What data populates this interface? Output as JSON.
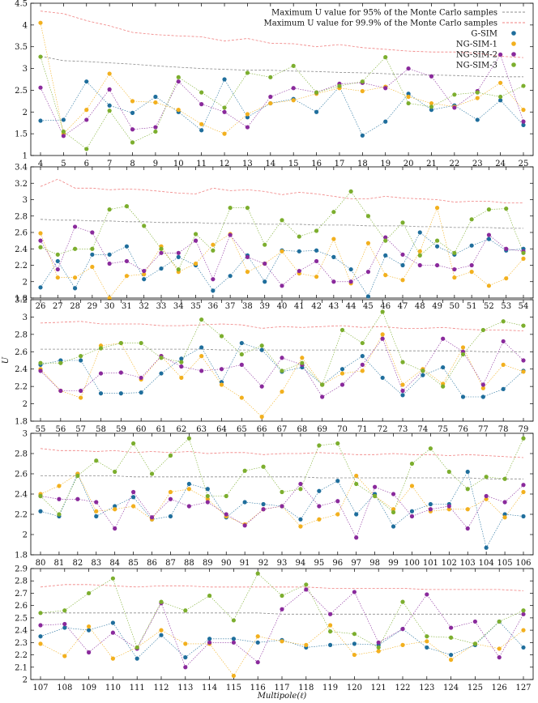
{
  "chart_data": {
    "type": "scatter",
    "xlabel": "Multipole(ℓ)",
    "ylabel": "U",
    "legend": {
      "placement": "top-right",
      "entries": [
        {
          "key": "p95",
          "label": "Maximum U value for 95% of the Monte Carlo samples",
          "style": "dashed-line",
          "color": "#8c8c8c"
        },
        {
          "key": "p999",
          "label": "Maximum U value for 99.9% of the Monte Carlo samples",
          "style": "dashed-line",
          "color": "#f08080"
        },
        {
          "key": "gsim",
          "label": "G-SIM",
          "style": "marker",
          "color": "#1f6e9c"
        },
        {
          "key": "ngsim1",
          "label": "NG-SIM-1",
          "style": "marker",
          "color": "#f2b01e"
        },
        {
          "key": "ngsim2",
          "label": "NG-SIM-2",
          "style": "marker",
          "color": "#8a2a9c"
        },
        {
          "key": "ngsim3",
          "label": "NG-SIM-3",
          "style": "marker",
          "color": "#7cae2e"
        }
      ]
    },
    "colors": {
      "p95": "#8c8c8c",
      "p999": "#f08080",
      "gsim": "#1f6e9c",
      "ngsim1": "#f2b01e",
      "ngsim2": "#8a2a9c",
      "ngsim3": "#7cae2e"
    },
    "panels": [
      {
        "x_start": 4,
        "ylim": [
          1.0,
          4.5
        ],
        "yticks": [
          "1",
          "1.5",
          "2",
          "2.5",
          "3",
          "3.5",
          "4",
          "4.5"
        ],
        "p95": [
          3.28,
          3.18,
          3.16,
          3.13,
          3.1,
          3.06,
          3.03,
          3.0,
          2.98,
          2.96,
          2.96,
          2.94,
          2.93,
          2.91,
          2.9,
          2.88,
          2.86,
          2.85,
          2.84,
          2.82,
          2.81,
          2.81
        ],
        "p999": [
          4.32,
          4.26,
          4.1,
          3.98,
          3.83,
          3.78,
          3.75,
          3.73,
          3.63,
          3.69,
          3.58,
          3.57,
          3.5,
          3.55,
          3.48,
          3.44,
          3.4,
          3.38,
          3.38,
          3.35,
          3.28,
          3.25
        ],
        "gsim": [
          1.8,
          1.82,
          2.7,
          2.15,
          1.98,
          2.35,
          2.0,
          1.58,
          2.75,
          1.88,
          2.2,
          2.3,
          2.0,
          2.58,
          1.46,
          1.78,
          2.42,
          2.05,
          2.15,
          1.82,
          2.27,
          1.7
        ],
        "ngsim1": [
          4.05,
          1.5,
          2.05,
          2.88,
          2.25,
          2.22,
          2.05,
          1.72,
          1.5,
          1.95,
          2.2,
          2.27,
          2.42,
          2.55,
          2.48,
          2.58,
          2.35,
          2.2,
          2.12,
          2.32,
          2.67,
          2.05
        ],
        "ngsim2": [
          2.56,
          1.45,
          1.82,
          2.52,
          1.6,
          1.65,
          2.7,
          2.18,
          2.0,
          1.65,
          2.35,
          2.55,
          2.45,
          2.65,
          2.67,
          2.55,
          3.0,
          2.82,
          2.1,
          2.48,
          3.32,
          1.78
        ],
        "ngsim3": [
          3.27,
          1.55,
          1.15,
          2.03,
          1.3,
          1.55,
          2.8,
          2.45,
          2.1,
          2.9,
          2.8,
          3.06,
          2.45,
          2.6,
          2.7,
          3.26,
          2.2,
          2.12,
          2.4,
          2.45,
          2.35,
          2.6
        ]
      },
      {
        "x_start": 26,
        "ylim": [
          1.8,
          3.4
        ],
        "yticks": [
          "1.8",
          "2",
          "2.2",
          "2.4",
          "2.6",
          "2.8",
          "3",
          "3.2",
          "3.4"
        ],
        "p95": [
          2.76,
          2.75,
          2.75,
          2.74,
          2.74,
          2.73,
          2.73,
          2.72,
          2.72,
          2.72,
          2.71,
          2.71,
          2.71,
          2.7,
          2.7,
          2.7,
          2.69,
          2.69,
          2.69,
          2.68,
          2.68,
          2.68,
          2.67,
          2.67,
          2.66,
          2.66,
          2.66,
          2.65,
          2.65
        ],
        "p999": [
          3.16,
          3.25,
          3.14,
          3.14,
          3.12,
          3.13,
          3.12,
          3.1,
          3.08,
          3.07,
          3.14,
          3.11,
          3.12,
          3.1,
          3.06,
          3.09,
          3.07,
          3.04,
          3.01,
          3.01,
          3.04,
          3.02,
          3.01,
          3.0,
          2.97,
          2.98,
          2.98,
          2.96,
          2.96
        ],
        "gsim": [
          1.93,
          2.25,
          1.92,
          2.33,
          2.33,
          2.43,
          2.03,
          2.16,
          2.3,
          2.2,
          1.89,
          2.07,
          2.32,
          2.0,
          2.38,
          2.37,
          2.38,
          2.3,
          2.15,
          1.82,
          2.32,
          2.2,
          2.6,
          2.43,
          2.33,
          2.44,
          2.52,
          2.38,
          2.4
        ],
        "ngsim1": [
          2.59,
          2.05,
          2.05,
          2.18,
          1.8,
          2.07,
          2.09,
          2.43,
          2.12,
          2.22,
          2.45,
          2.58,
          2.12,
          2.22,
          2.37,
          2.1,
          2.06,
          2.52,
          1.98,
          2.47,
          2.08,
          2.02,
          2.37,
          2.9,
          2.05,
          2.12,
          1.95,
          2.04,
          2.28
        ],
        "ngsim2": [
          2.5,
          2.15,
          2.67,
          2.6,
          2.22,
          2.25,
          2.13,
          2.35,
          2.35,
          2.5,
          2.03,
          2.57,
          2.3,
          2.22,
          1.95,
          2.13,
          2.25,
          2.0,
          2.0,
          2.12,
          2.54,
          2.33,
          2.2,
          2.2,
          2.15,
          2.2,
          2.57,
          2.4,
          2.37
        ],
        "ngsim3": [
          2.42,
          2.33,
          2.4,
          2.4,
          2.88,
          2.92,
          2.68,
          2.4,
          2.15,
          2.58,
          2.38,
          2.9,
          2.9,
          2.45,
          2.75,
          2.55,
          2.62,
          2.85,
          3.1,
          2.8,
          2.5,
          2.72,
          2.32,
          2.5,
          2.35,
          2.76,
          2.88,
          2.89,
          2.35
        ]
      },
      {
        "x_start": 55,
        "ylim": [
          1.8,
          3.2
        ],
        "yticks": [
          "1.8",
          "2",
          "2.2",
          "2.4",
          "2.6",
          "2.8",
          "3",
          "3.2"
        ],
        "p95": [
          2.63,
          2.63,
          2.63,
          2.63,
          2.63,
          2.63,
          2.63,
          2.63,
          2.63,
          2.62,
          2.62,
          2.62,
          2.62,
          2.62,
          2.62,
          2.62,
          2.62,
          2.62,
          2.61,
          2.61,
          2.61,
          2.61,
          2.6,
          2.6,
          2.6
        ],
        "p999": [
          2.93,
          2.94,
          2.95,
          2.92,
          2.92,
          2.92,
          2.9,
          2.9,
          2.91,
          2.92,
          2.91,
          2.87,
          2.89,
          2.88,
          2.89,
          2.9,
          2.88,
          2.89,
          2.87,
          2.87,
          2.88,
          2.86,
          2.85,
          2.85,
          2.84
        ],
        "gsim": [
          2.45,
          2.5,
          2.5,
          2.12,
          2.12,
          2.13,
          2.35,
          2.52,
          2.65,
          2.25,
          2.7,
          2.62,
          2.37,
          2.42,
          2.22,
          2.4,
          2.55,
          2.3,
          2.1,
          2.33,
          2.42,
          2.08,
          2.08,
          2.17,
          2.38
        ],
        "ngsim1": [
          2.4,
          2.15,
          2.07,
          2.67,
          2.7,
          2.28,
          2.55,
          2.3,
          2.55,
          2.22,
          2.07,
          1.85,
          2.14,
          2.53,
          2.22,
          2.35,
          2.38,
          2.8,
          2.22,
          2.4,
          2.23,
          2.65,
          2.18,
          2.45,
          2.37
        ],
        "ngsim2": [
          2.38,
          2.15,
          2.15,
          2.35,
          2.36,
          2.3,
          2.55,
          2.43,
          2.38,
          2.4,
          2.45,
          2.2,
          2.53,
          2.45,
          2.08,
          2.22,
          2.45,
          2.75,
          2.15,
          2.38,
          2.75,
          2.6,
          2.22,
          2.72,
          2.5
        ],
        "ngsim3": [
          2.47,
          2.47,
          2.55,
          2.64,
          2.7,
          2.7,
          2.53,
          2.48,
          2.97,
          2.78,
          2.57,
          2.67,
          2.38,
          2.47,
          2.22,
          2.85,
          2.7,
          3.06,
          2.48,
          2.38,
          2.2,
          2.57,
          2.85,
          2.95,
          2.9
        ]
      },
      {
        "x_start": 80,
        "ylim": [
          1.8,
          3.0
        ],
        "yticks": [
          "1.8",
          "2",
          "2.2",
          "2.4",
          "2.6",
          "2.8",
          "3"
        ],
        "p95": [
          2.58,
          2.58,
          2.58,
          2.58,
          2.58,
          2.57,
          2.57,
          2.57,
          2.57,
          2.57,
          2.57,
          2.57,
          2.57,
          2.57,
          2.57,
          2.56,
          2.56,
          2.56,
          2.56,
          2.56,
          2.56,
          2.56,
          2.56,
          2.56,
          2.55,
          2.55,
          2.55
        ],
        "p999": [
          2.85,
          2.83,
          2.83,
          2.82,
          2.83,
          2.81,
          2.82,
          2.81,
          2.82,
          2.8,
          2.81,
          2.81,
          2.79,
          2.8,
          2.8,
          2.81,
          2.8,
          2.79,
          2.79,
          2.8,
          2.79,
          2.79,
          2.78,
          2.79,
          2.78,
          2.77,
          2.76
        ],
        "gsim": [
          2.23,
          2.18,
          2.6,
          2.18,
          2.28,
          2.37,
          2.15,
          2.18,
          2.5,
          2.45,
          2.17,
          2.32,
          2.3,
          2.28,
          2.15,
          2.43,
          2.53,
          2.2,
          2.4,
          2.08,
          2.23,
          2.3,
          2.3,
          2.62,
          1.87,
          2.2,
          2.18
        ],
        "ngsim1": [
          2.4,
          2.48,
          2.6,
          2.23,
          2.25,
          2.28,
          2.15,
          2.42,
          2.45,
          2.35,
          2.18,
          2.1,
          2.25,
          2.28,
          2.08,
          2.15,
          2.2,
          2.58,
          2.38,
          2.25,
          2.48,
          2.23,
          2.25,
          2.25,
          2.35,
          2.17,
          2.42
        ],
        "ngsim2": [
          2.38,
          2.35,
          2.35,
          2.32,
          2.06,
          2.42,
          2.17,
          2.35,
          2.28,
          2.32,
          2.2,
          2.09,
          2.25,
          2.28,
          2.5,
          2.28,
          2.33,
          1.97,
          2.47,
          2.4,
          2.18,
          2.25,
          2.28,
          2.06,
          2.38,
          2.32,
          2.49
        ],
        "ngsim3": [
          2.38,
          2.2,
          2.58,
          2.73,
          2.62,
          2.9,
          2.6,
          2.78,
          2.95,
          2.38,
          2.38,
          2.63,
          2.67,
          2.42,
          2.45,
          2.88,
          2.9,
          2.5,
          2.38,
          2.22,
          2.7,
          2.85,
          2.62,
          2.45,
          2.57,
          2.55,
          2.95
        ]
      },
      {
        "x_start": 107,
        "ylim": [
          2.0,
          2.9
        ],
        "yticks": [
          "2",
          "2.1",
          "2.2",
          "2.3",
          "2.4",
          "2.5",
          "2.6",
          "2.7",
          "2.8",
          "2.9"
        ],
        "p95": [
          2.54,
          2.54,
          2.54,
          2.54,
          2.54,
          2.54,
          2.54,
          2.54,
          2.54,
          2.54,
          2.53,
          2.53,
          2.53,
          2.53,
          2.53,
          2.53,
          2.53,
          2.53,
          2.53,
          2.53,
          2.53
        ],
        "p999": [
          2.75,
          2.77,
          2.77,
          2.76,
          2.75,
          2.76,
          2.76,
          2.75,
          2.75,
          2.75,
          2.75,
          2.75,
          2.74,
          2.74,
          2.74,
          2.74,
          2.73,
          2.73,
          2.73,
          2.73,
          2.72
        ],
        "gsim": [
          2.35,
          2.42,
          2.4,
          2.46,
          2.17,
          2.36,
          2.18,
          2.33,
          2.33,
          2.3,
          2.32,
          2.26,
          2.28,
          2.29,
          2.28,
          2.41,
          2.26,
          2.2,
          2.28,
          2.47,
          2.26
        ],
        "ngsim1": [
          2.29,
          2.19,
          2.43,
          2.17,
          2.26,
          2.4,
          2.29,
          2.29,
          2.03,
          2.35,
          2.31,
          2.28,
          2.44,
          2.2,
          2.23,
          2.28,
          2.31,
          2.16,
          2.29,
          2.25,
          2.4
        ],
        "ngsim2": [
          2.44,
          2.45,
          2.22,
          2.38,
          2.25,
          2.62,
          2.1,
          2.3,
          2.3,
          2.14,
          2.57,
          2.73,
          2.53,
          2.71,
          2.3,
          2.41,
          2.69,
          2.42,
          2.47,
          2.18,
          2.53
        ],
        "ngsim3": [
          2.54,
          2.56,
          2.7,
          2.82,
          2.26,
          2.63,
          2.56,
          2.68,
          2.48,
          2.86,
          2.68,
          2.77,
          2.39,
          2.37,
          2.26,
          2.63,
          2.35,
          2.34,
          2.29,
          2.47,
          2.56
        ]
      }
    ]
  }
}
